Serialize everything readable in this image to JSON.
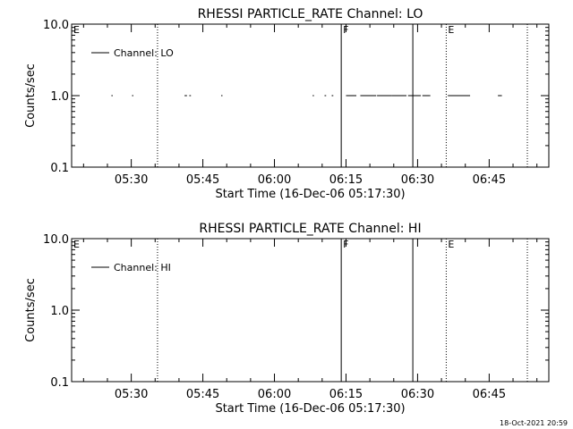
{
  "footer": {
    "timestamp": "18-Oct-2021 20:59"
  },
  "chart_data": [
    {
      "type": "line",
      "title": "RHESSI PARTICLE_RATE Channel: LO",
      "xlabel": "Start Time (16-Dec-06 05:17:30)",
      "ylabel": "Counts/sec",
      "y_scale": "log",
      "ylim": [
        0.1,
        10.0
      ],
      "y_ticks": [
        "0.1",
        "1.0",
        "10.0"
      ],
      "x_range": [
        "05:17:30",
        "06:57:30"
      ],
      "x_ticks": [
        "05:30",
        "05:45",
        "06:00",
        "06:15",
        "06:30",
        "06:45"
      ],
      "legend": {
        "position": "top-left",
        "entries": [
          "Channel: LO"
        ]
      },
      "markers": [
        {
          "label": "E",
          "time": "05:17:30",
          "style": "none"
        },
        {
          "label": "",
          "time": "05:35:30",
          "style": "dotted"
        },
        {
          "label": "F",
          "time": "06:14:00",
          "style": "solid"
        },
        {
          "label": "",
          "time": "06:29:00",
          "style": "solid"
        },
        {
          "label": "E",
          "time": "06:36:00",
          "style": "dotted"
        },
        {
          "label": "",
          "time": "06:53:00",
          "style": "dotted"
        }
      ],
      "series": [
        {
          "name": "Channel: LO",
          "segments": [
            {
              "start": "05:25:50",
              "end": "05:26:00",
              "value": 1.0
            },
            {
              "start": "05:30:10",
              "end": "05:30:20",
              "value": 1.0
            },
            {
              "start": "05:41:10",
              "end": "05:41:40",
              "value": 1.0
            },
            {
              "start": "05:42:10",
              "end": "05:42:30",
              "value": 1.0
            },
            {
              "start": "05:48:50",
              "end": "05:49:00",
              "value": 1.0
            },
            {
              "start": "06:08:00",
              "end": "06:08:10",
              "value": 1.0
            },
            {
              "start": "06:10:30",
              "end": "06:10:50",
              "value": 1.0
            },
            {
              "start": "06:12:00",
              "end": "06:12:20",
              "value": 1.0
            },
            {
              "start": "06:15:00",
              "end": "06:17:10",
              "value": 1.0
            },
            {
              "start": "06:18:00",
              "end": "06:21:20",
              "value": 1.0
            },
            {
              "start": "06:21:30",
              "end": "06:24:30",
              "value": 1.0
            },
            {
              "start": "06:24:30",
              "end": "06:27:40",
              "value": 1.0
            },
            {
              "start": "06:28:00",
              "end": "06:30:40",
              "value": 1.0
            },
            {
              "start": "06:31:00",
              "end": "06:32:40",
              "value": 1.0
            },
            {
              "start": "06:36:20",
              "end": "06:41:00",
              "value": 1.0
            },
            {
              "start": "06:46:50",
              "end": "06:47:40",
              "value": 1.0
            }
          ]
        }
      ]
    },
    {
      "type": "line",
      "title": "RHESSI PARTICLE_RATE Channel: HI",
      "xlabel": "Start Time (16-Dec-06 05:17:30)",
      "ylabel": "Counts/sec",
      "y_scale": "log",
      "ylim": [
        0.1,
        10.0
      ],
      "y_ticks": [
        "0.1",
        "1.0",
        "10.0"
      ],
      "x_range": [
        "05:17:30",
        "06:57:30"
      ],
      "x_ticks": [
        "05:30",
        "05:45",
        "06:00",
        "06:15",
        "06:30",
        "06:45"
      ],
      "legend": {
        "position": "top-left",
        "entries": [
          "Channel: HI"
        ]
      },
      "markers": [
        {
          "label": "E",
          "time": "05:17:30",
          "style": "none"
        },
        {
          "label": "",
          "time": "05:35:30",
          "style": "dotted"
        },
        {
          "label": "F",
          "time": "06:14:00",
          "style": "solid"
        },
        {
          "label": "",
          "time": "06:29:00",
          "style": "solid"
        },
        {
          "label": "E",
          "time": "06:36:00",
          "style": "dotted"
        },
        {
          "label": "",
          "time": "06:53:00",
          "style": "dotted"
        }
      ],
      "series": [
        {
          "name": "Channel: HI",
          "segments": []
        }
      ]
    }
  ]
}
